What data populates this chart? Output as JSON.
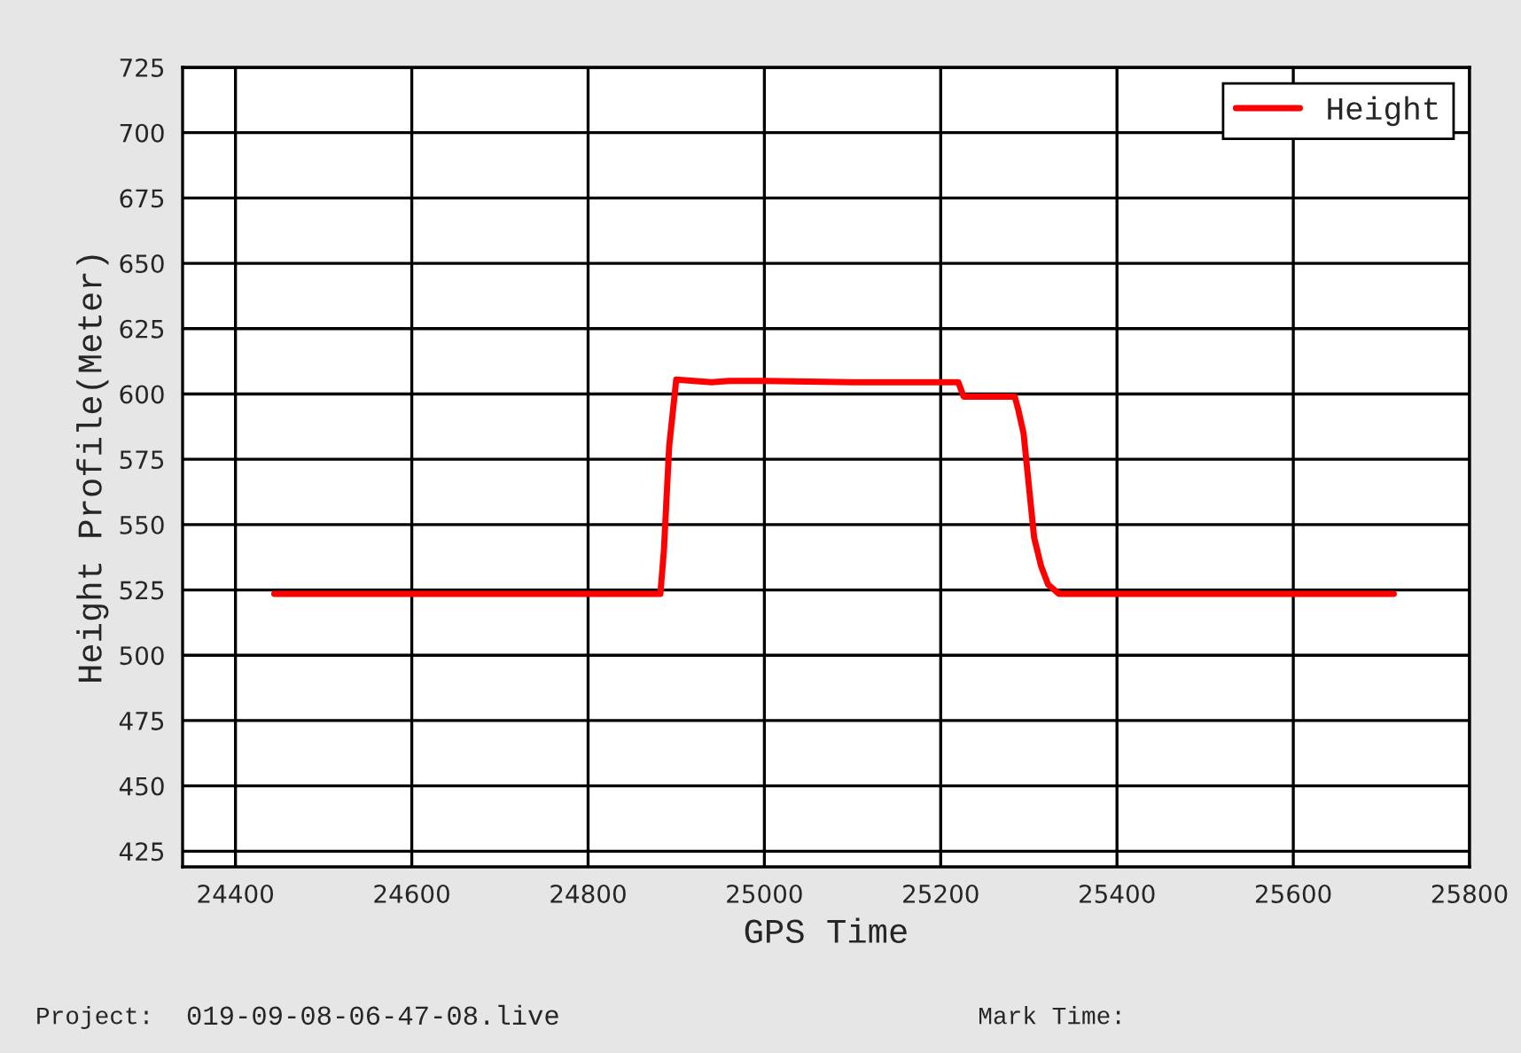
{
  "chart_data": {
    "type": "line",
    "xlabel": "GPS Time",
    "ylabel": "Height Profile(Meter)",
    "xlim": [
      24340,
      25800
    ],
    "xticks": [
      24400,
      24600,
      24800,
      25000,
      25200,
      25400,
      25600,
      25800
    ],
    "ylim": [
      419,
      725
    ],
    "yticks": [
      425,
      450,
      475,
      500,
      525,
      550,
      575,
      600,
      625,
      650,
      675,
      700,
      725
    ],
    "grid": true,
    "legend": "top right",
    "series": [
      {
        "name": "Height",
        "color": "#ff0000",
        "x": [
          24444,
          24600,
          24800,
          24882,
          24886,
          24892,
          24900,
          24940,
          24960,
          25000,
          25100,
          25200,
          25220,
          25226,
          25232,
          25284,
          25288,
          25294,
          25300,
          25306,
          25314,
          25322,
          25334,
          25400,
          25600,
          25714
        ],
        "values": [
          523.5,
          523.5,
          523.5,
          523.5,
          540,
          580,
          605.5,
          604.5,
          605,
          605,
          604.5,
          604.5,
          604.5,
          599,
          599,
          599,
          594,
          585,
          565,
          545,
          534,
          527,
          523.5,
          523.5,
          523.5,
          523.5
        ]
      }
    ],
    "annotations": [
      "Project:",
      "019-09-08-06-47-08.live",
      "Mark Time:"
    ]
  }
}
